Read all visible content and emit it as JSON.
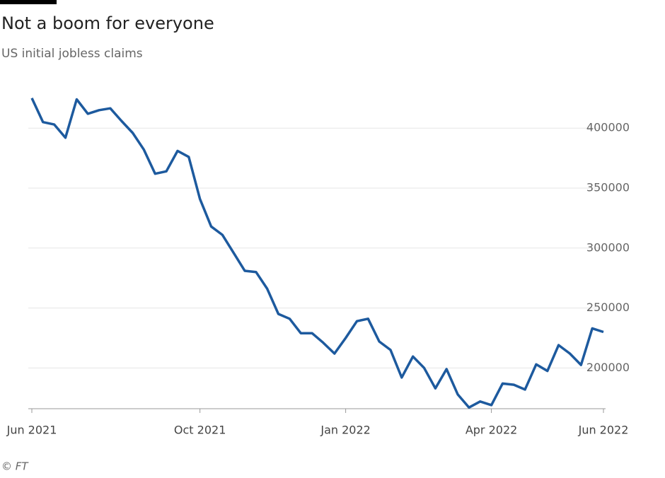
{
  "chart_data": {
    "type": "line",
    "title": "Not a boom for everyone",
    "subtitle": "US initial jobless claims",
    "source": "© FT",
    "categories": [
      "Jun 2021",
      null,
      null,
      null,
      null,
      null,
      null,
      null,
      null,
      null,
      null,
      null,
      null,
      null,
      null,
      "Oct 2021",
      null,
      null,
      null,
      null,
      null,
      null,
      null,
      null,
      null,
      null,
      null,
      null,
      "Jan 2022",
      null,
      null,
      null,
      null,
      null,
      null,
      null,
      null,
      null,
      null,
      null,
      null,
      "Apr 2022",
      null,
      null,
      null,
      null,
      null,
      null,
      null,
      null,
      null,
      "Jun 2022"
    ],
    "series": [
      {
        "name": "US initial jobless claims",
        "color": "#1d5a9e",
        "values": [
          425000,
          405000,
          403000,
          392000,
          424000,
          412000,
          415000,
          416500,
          406000,
          396000,
          382000,
          362000,
          364000,
          381000,
          376000,
          341000,
          318000,
          311000,
          296000,
          281000,
          280000,
          266000,
          245000,
          241000,
          229000,
          229000,
          221000,
          212000,
          225000,
          239000,
          241000,
          222000,
          215000,
          192000,
          209500,
          200000,
          183000,
          199000,
          178000,
          167000,
          172000,
          169000,
          187000,
          186000,
          182000,
          203000,
          197500,
          219000,
          212000,
          202500,
          233000,
          230000
        ]
      }
    ],
    "ylim": [
      166000,
      442000
    ],
    "yticks": [
      200000,
      250000,
      300000,
      350000,
      400000
    ],
    "grid": true
  }
}
